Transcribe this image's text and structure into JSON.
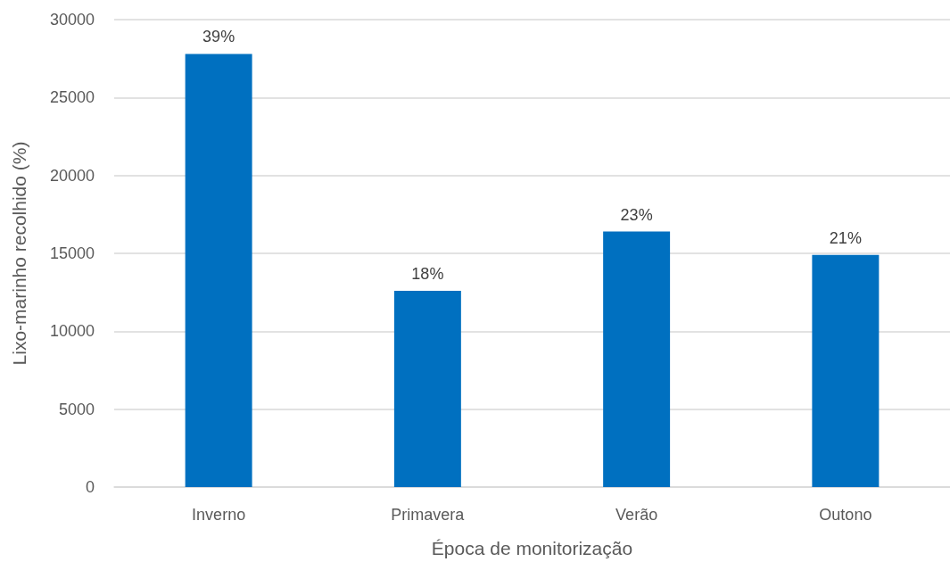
{
  "chart_data": {
    "type": "bar",
    "xlabel": "Época de monitorização",
    "ylabel": "Lixo-marinho recolhido (%)",
    "categories": [
      "Inverno",
      "Primavera",
      "Verão",
      "Outono"
    ],
    "values": [
      27800,
      12600,
      16400,
      14900
    ],
    "color": "#0070c0",
    "annotations": [
      {
        "text": "39%",
        "x": "Inverno",
        "y": 27800
      },
      {
        "text": "18%",
        "x": "Primavera",
        "y": 12600
      },
      {
        "text": "23%",
        "x": "Verão",
        "y": 16400
      },
      {
        "text": "21%",
        "x": "Outono",
        "y": 14900
      }
    ],
    "ylim": [
      0,
      30000
    ],
    "yticks": [
      0,
      5000,
      10000,
      15000,
      20000,
      25000,
      30000
    ],
    "grid": "y"
  }
}
